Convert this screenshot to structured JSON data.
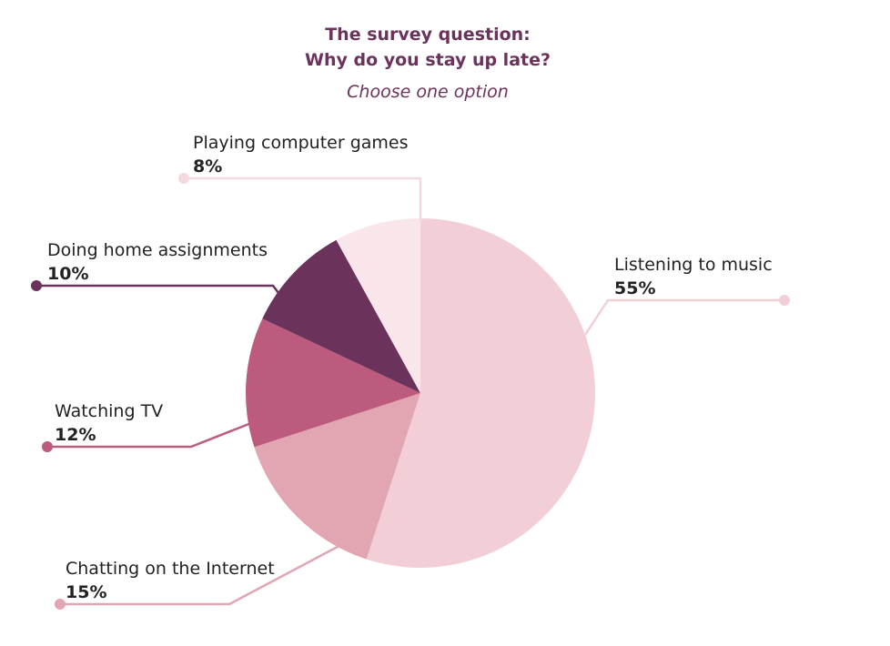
{
  "chart_data": {
    "type": "pie",
    "title_line1": "The survey question:",
    "title_line2": "Why do you stay up late?",
    "subtitle": "Choose one option",
    "slices": [
      {
        "label": "Listening to music",
        "value": 55,
        "pct_label": "55%",
        "color": "#f2cfd6"
      },
      {
        "label": "Chatting on the Internet",
        "value": 15,
        "pct_label": "15%",
        "color": "#e2a5b2"
      },
      {
        "label": "Watching TV",
        "value": 12,
        "pct_label": "12%",
        "color": "#bc5b7e"
      },
      {
        "label": "Doing home assignments",
        "value": 10,
        "pct_label": "10%",
        "color": "#6b335c"
      },
      {
        "label": "Playing computer games",
        "value": 8,
        "pct_label": "8%",
        "color": "#f9e6eb"
      }
    ],
    "start": "top",
    "direction": "clockwise"
  }
}
